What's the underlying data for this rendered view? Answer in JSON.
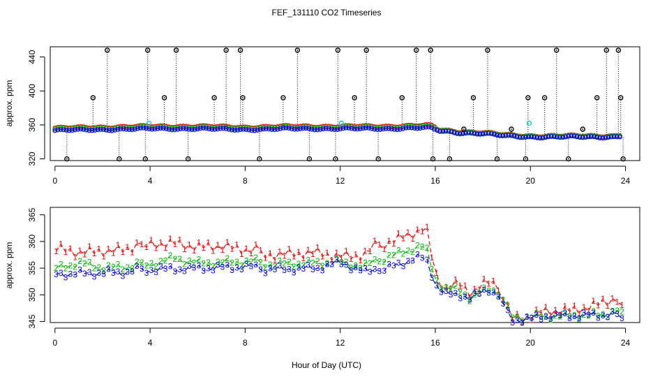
{
  "figure": {
    "title": "FEF_131110  CO2 Timeseries",
    "xlabel": "Hour of Day (UTC)"
  },
  "chart_data": [
    {
      "type": "scatter",
      "ylabel": "approx. ppm",
      "xlim": [
        -0.2,
        24.6
      ],
      "ylim": [
        318,
        452
      ],
      "x_ticks": [
        0,
        4,
        8,
        12,
        16,
        20,
        24
      ],
      "y_ticks": [
        320,
        360,
        400,
        440
      ],
      "colors": {
        "series1": "#ff0000",
        "series2": "#00bb00",
        "series3": "#0000ff",
        "cyan": "#00cccc",
        "outlier": "#000000"
      },
      "series_profile": {
        "x": [
          0,
          2,
          4,
          6,
          8,
          10,
          12,
          14,
          15.2,
          15.8,
          16.2,
          17,
          18,
          19,
          20,
          22,
          23.5,
          23.8
        ],
        "y": [
          354,
          355,
          356,
          356,
          355,
          356,
          356,
          356,
          357,
          357,
          353,
          351,
          350,
          347,
          346,
          346,
          346,
          347
        ]
      },
      "outliers": {
        "x": [
          0.5,
          1.6,
          2.2,
          2.7,
          3.8,
          3.9,
          4.6,
          5.1,
          5.6,
          6.7,
          7.2,
          7.8,
          7.9,
          8.6,
          9.6,
          10.2,
          10.7,
          11.8,
          11.9,
          12.6,
          13.1,
          13.6,
          14.6,
          15.2,
          15.8,
          15.9,
          16.6,
          17.2,
          17.6,
          18.2,
          18.6,
          19.2,
          19.8,
          19.9,
          20.6,
          21.1,
          21.6,
          22.2,
          22.8,
          23.2,
          23.7,
          23.8,
          23.9
        ],
        "y": [
          320,
          392,
          448,
          320,
          320,
          448,
          392,
          448,
          320,
          392,
          448,
          448,
          392,
          320,
          392,
          448,
          320,
          320,
          448,
          392,
          448,
          320,
          392,
          448,
          448,
          320,
          320,
          355,
          392,
          448,
          320,
          355,
          320,
          392,
          392,
          448,
          320,
          355,
          392,
          448,
          448,
          392,
          320
        ]
      },
      "cyan_points": {
        "x": [
          3.95,
          12.05,
          19.95
        ],
        "y": [
          362,
          362,
          362
        ]
      }
    },
    {
      "type": "scatter",
      "ylabel": "approx. ppm",
      "xlim": [
        -0.2,
        24.6
      ],
      "ylim": [
        344.8,
        366.4
      ],
      "x_ticks": [
        0,
        4,
        8,
        12,
        16,
        20,
        24
      ],
      "y_ticks": [
        345,
        350,
        355,
        360,
        365
      ],
      "series": [
        {
          "marker": "1",
          "color": "#ff0000"
        },
        {
          "marker": "2",
          "color": "#00bb00"
        },
        {
          "marker": "3",
          "color": "#0000ff"
        }
      ],
      "profiles": {
        "x": [
          0,
          1,
          2,
          3,
          4,
          5,
          6,
          7,
          8,
          9,
          10,
          11,
          12,
          13,
          13.8,
          14.5,
          15.2,
          15.6,
          16.0,
          16.4,
          17,
          17.5,
          18.2,
          18.8,
          19.2,
          19.8,
          20.5,
          21,
          22,
          23,
          23.8
        ],
        "s1": [
          359,
          358,
          358,
          358,
          360,
          360,
          359,
          359,
          358,
          358,
          358,
          358,
          357,
          357,
          360,
          361,
          362,
          363,
          354,
          351,
          352,
          350,
          352,
          351,
          346,
          346,
          347,
          347,
          347,
          348,
          349
        ],
        "s2": [
          355,
          356,
          355,
          355,
          356,
          357,
          356,
          356,
          356,
          356,
          356,
          356,
          356,
          355,
          357,
          358,
          359,
          359,
          353,
          351,
          351,
          349,
          351,
          350,
          346,
          346,
          346,
          346,
          346,
          346,
          347
        ],
        "s3": [
          354,
          354,
          354,
          354,
          355,
          355,
          355,
          355,
          355,
          355,
          355,
          355,
          356,
          354,
          355,
          356,
          357,
          357,
          352,
          350,
          350,
          349,
          351,
          349,
          345.5,
          345.5,
          346,
          346,
          346,
          346,
          346
        ]
      }
    }
  ]
}
